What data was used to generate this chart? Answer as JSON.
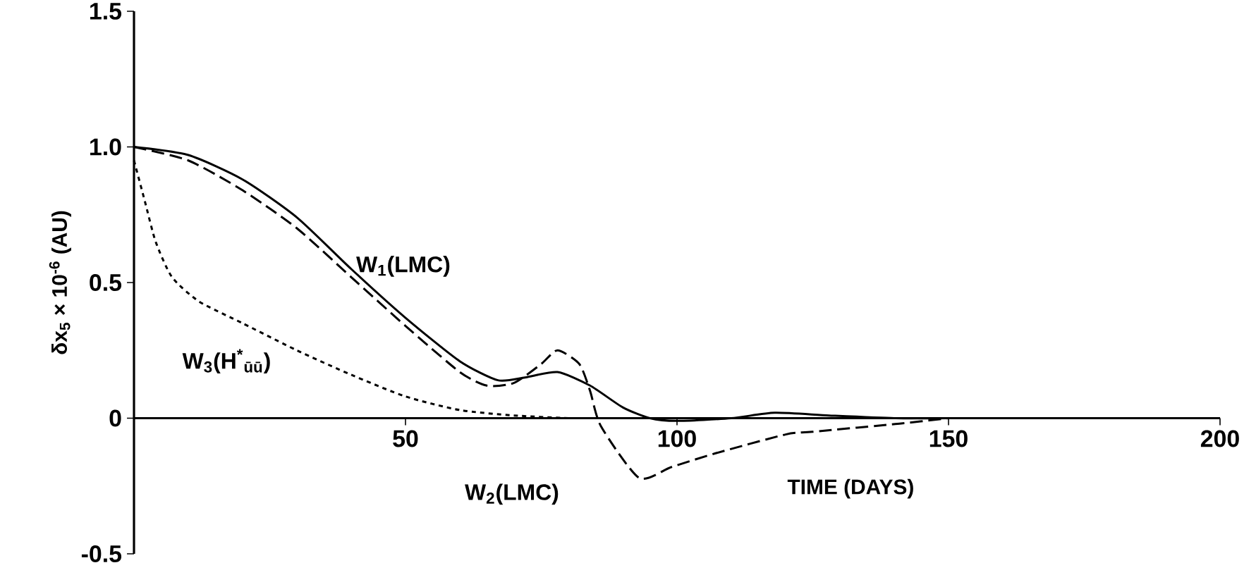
{
  "chart_data": {
    "type": "line",
    "xlabel": "TIME (DAYS)",
    "ylabel": "δx$_{5}$ × 10$^{-6}$ (AU)",
    "xlim": [
      0,
      200
    ],
    "ylim": [
      -0.5,
      1.5
    ],
    "xticks": [
      50,
      100,
      150,
      200
    ],
    "yticks": [
      {
        "value": -0.5,
        "label": "-0.5"
      },
      0,
      0.5,
      {
        "value": 1.0,
        "label": "1.0"
      },
      1.5
    ],
    "marker": "none",
    "series": [
      {
        "name": "W$_{1}$(LMC)",
        "color": "#000000",
        "line_style": "solid",
        "x": [
          0,
          10,
          20,
          30,
          40,
          50,
          60,
          67,
          72,
          78,
          84,
          90,
          95,
          100,
          110,
          118,
          128,
          140,
          150
        ],
        "values": [
          1.0,
          0.97,
          0.88,
          0.74,
          0.55,
          0.37,
          0.21,
          0.14,
          0.15,
          0.17,
          0.12,
          0.04,
          0.0,
          -0.01,
          0.0,
          0.02,
          0.01,
          0.0,
          0.0
        ]
      },
      {
        "name": "W$_{2}$(LMC)",
        "color": "#000000",
        "line_style": "dashed",
        "x": [
          0,
          10,
          20,
          30,
          40,
          50,
          60,
          65,
          70,
          75,
          78,
          82,
          84,
          86,
          93,
          99,
          107,
          120,
          125,
          141,
          150
        ],
        "values": [
          1.0,
          0.95,
          0.84,
          0.7,
          0.52,
          0.34,
          0.17,
          0.12,
          0.13,
          0.2,
          0.25,
          0.2,
          0.1,
          -0.03,
          -0.22,
          -0.18,
          -0.13,
          -0.06,
          -0.05,
          -0.02,
          0.0
        ]
      },
      {
        "name": "W$_{3}$(H$^{*}$$_{ūū}$)",
        "color": "#000000",
        "line_style": "dotted",
        "x": [
          0,
          2,
          4,
          7,
          12,
          20,
          30,
          40,
          50,
          60,
          70,
          80
        ],
        "values": [
          0.95,
          0.8,
          0.65,
          0.52,
          0.43,
          0.35,
          0.25,
          0.16,
          0.08,
          0.03,
          0.01,
          0.0
        ]
      }
    ]
  }
}
